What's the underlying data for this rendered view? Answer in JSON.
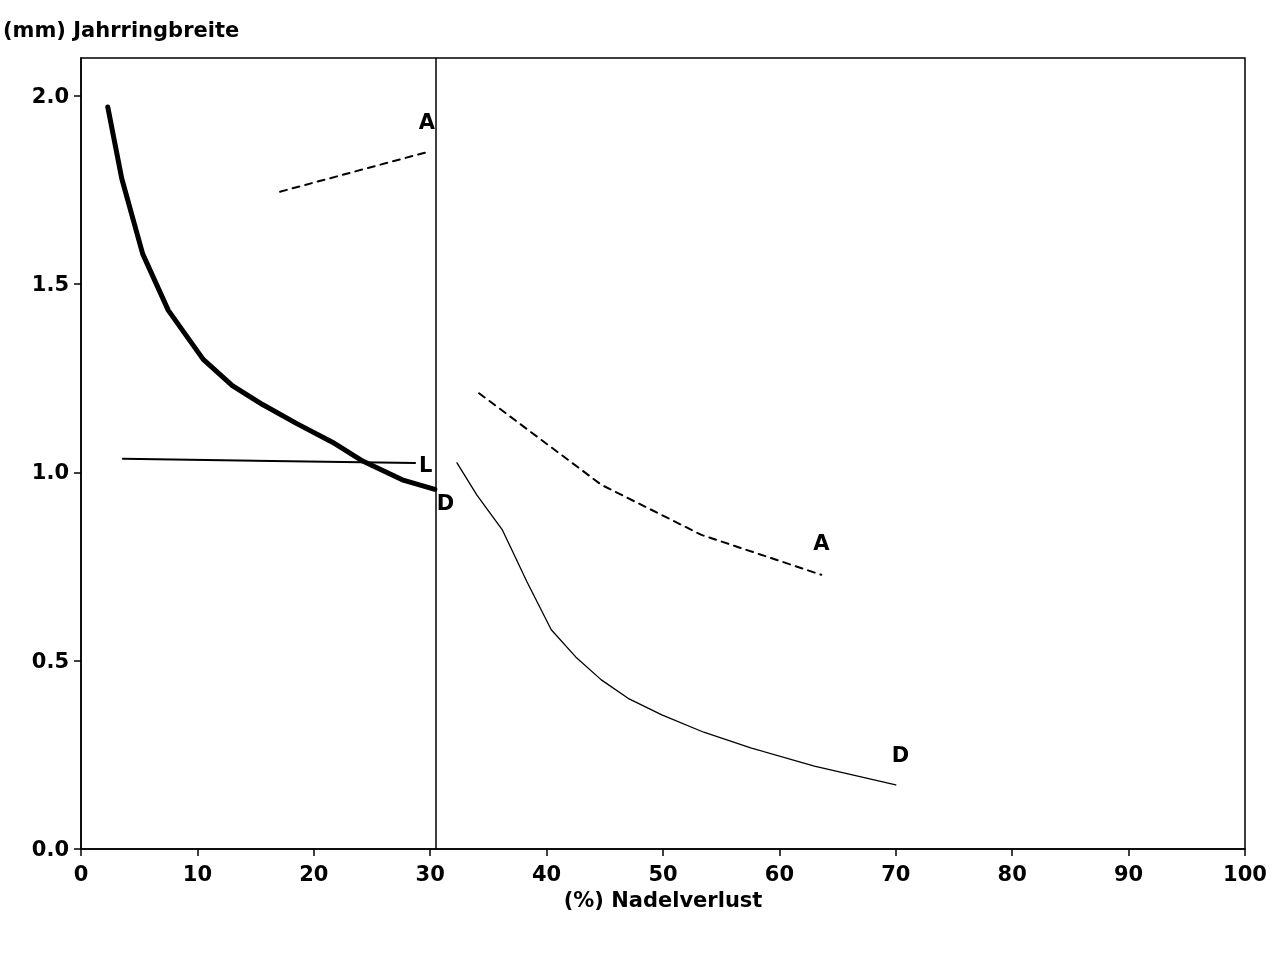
{
  "chart_data": {
    "type": "line",
    "xlabel": "(%) Nadelverlust",
    "ylabel": "(mm) Jahrringbreite",
    "xlim": [
      0,
      100
    ],
    "xticks": [
      0,
      10,
      20,
      30,
      40,
      50,
      60,
      70,
      80,
      90,
      100
    ],
    "ylim": [
      0,
      2.1
    ],
    "yticks": [
      {
        "value": 0,
        "label": "0.0"
      },
      {
        "value": 0.5,
        "label": "0.5"
      },
      {
        "value": 1,
        "label": "1.0"
      },
      {
        "value": 1.5,
        "label": "1.5"
      },
      {
        "value": 2,
        "label": "2.0"
      }
    ],
    "grid": false,
    "legend": false,
    "marker": "none",
    "ref_lines": [
      {
        "axis": "x",
        "value": 30.5,
        "color": "#000000",
        "line_style": "solid"
      }
    ],
    "series": [
      {
        "name": "D",
        "color": "#000000",
        "line_style": "solid",
        "x": [
          2.3,
          3.5,
          5.3,
          7.5,
          10.5,
          13,
          15.6,
          18.5,
          21.6,
          24.2,
          27.6,
          30.4
        ],
        "values": [
          1.97,
          1.78,
          1.58,
          1.43,
          1.3,
          1.23,
          1.18,
          1.13,
          1.08,
          1.03,
          0.98,
          0.955
        ]
      },
      {
        "name": "L",
        "color": "#000000",
        "line_style": "solid",
        "x": [
          3.6,
          28.7
        ],
        "values": [
          1.036,
          1.025
        ]
      },
      {
        "name": "A",
        "color": "#000000",
        "line_style": "dashed",
        "x": [
          17.1,
          29.7
        ],
        "values": [
          1.745,
          1.85
        ]
      },
      {
        "name": "A",
        "color": "#000000",
        "line_style": "dashed",
        "x": [
          34.2,
          44.7,
          53.3,
          63.6
        ],
        "values": [
          1.21,
          0.967,
          0.834,
          0.728
        ]
      },
      {
        "name": "D",
        "color": "#000000",
        "line_style": "solid",
        "x": [
          32.3,
          34,
          36.2,
          38.3,
          40.4,
          42.5,
          44.7,
          47,
          49.9,
          53.5,
          57.6,
          63,
          70
        ],
        "values": [
          1.025,
          0.94,
          0.847,
          0.71,
          0.582,
          0.51,
          0.449,
          0.4,
          0.356,
          0.31,
          0.268,
          0.22,
          0.17
        ]
      }
    ]
  }
}
